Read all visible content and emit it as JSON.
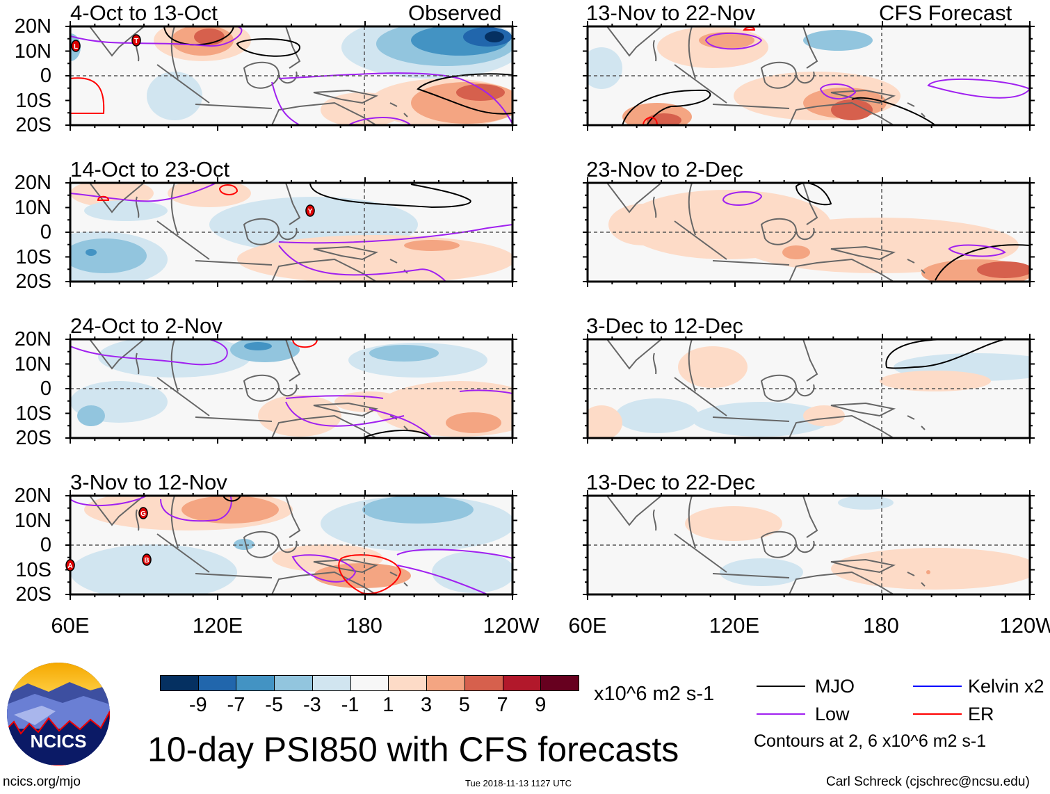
{
  "figure": {
    "title": "10-day PSI850 with CFS forecasts",
    "observed_label": "Observed",
    "forecast_label": "CFS Forecast",
    "latitude_labels": [
      "20N",
      "10N",
      "0",
      "10S",
      "20S"
    ],
    "longitude_labels": [
      "60E",
      "120E",
      "180",
      "120W"
    ],
    "panels_observed": [
      {
        "title": "4-Oct to 13-Oct",
        "storms": [
          "L",
          "T"
        ]
      },
      {
        "title": "14-Oct to 23-Oct",
        "storms": [
          "Y"
        ]
      },
      {
        "title": "24-Oct to 2-Nov",
        "storms": []
      },
      {
        "title": "3-Nov to 12-Nov",
        "storms": [
          "G",
          "B",
          "A"
        ]
      }
    ],
    "panels_forecast": [
      {
        "title": "13-Nov to 22-Nov"
      },
      {
        "title": "23-Nov to 2-Dec"
      },
      {
        "title": "3-Dec to 12-Dec"
      },
      {
        "title": "13-Dec to 22-Dec"
      }
    ]
  },
  "colorbar": {
    "colors": [
      "#053061",
      "#2166ac",
      "#4393c3",
      "#92c5de",
      "#d1e5f0",
      "#f7f7f7",
      "#fddbc7",
      "#f4a582",
      "#d6604d",
      "#b2182b",
      "#67001f"
    ],
    "labels": [
      "-9",
      "-7",
      "-5",
      "-3",
      "-1",
      "1",
      "3",
      "5",
      "7",
      "9"
    ],
    "units": "x10^6 m2 s-1"
  },
  "legend": {
    "items": [
      {
        "label": "MJO",
        "color": "#000000"
      },
      {
        "label": "Kelvin x2",
        "color": "#0000ff"
      },
      {
        "label": "Low",
        "color": "#a020f0"
      },
      {
        "label": "ER",
        "color": "#ff0000"
      }
    ],
    "contour_note": "Contours at 2, 6 x10^6 m2 s-1"
  },
  "logo": {
    "text": "NCICS"
  },
  "footer": {
    "url": "ncics.org/mjo",
    "timestamp": "Tue 2018-11-13 1127 UTC",
    "credit": "Carl Schreck (cjschrec@ncsu.edu)"
  }
}
